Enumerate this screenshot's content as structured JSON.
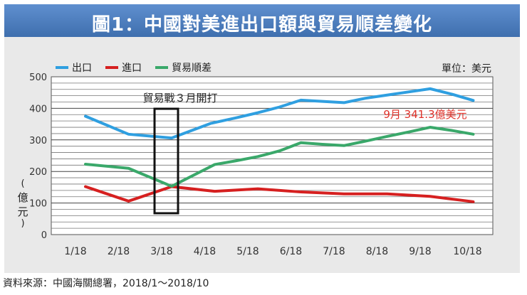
{
  "title": "圖1：中國對美進出口額與貿易順差變化",
  "unit_label": "單位：美元",
  "source": "資料來源：中國海關總署，2018/1～2018/10",
  "colors": {
    "export": "#2f9fe0",
    "import": "#d62020",
    "surplus": "#3aa86a",
    "annotation_red": "#e0322a"
  },
  "chart_data": {
    "type": "line",
    "title": "圖1：中國對美進出口額與貿易順差變化",
    "xlabel": "",
    "ylabel": "億元",
    "categories": [
      "1/18",
      "2/18",
      "3/18",
      "4/18",
      "5/18",
      "6/18",
      "7/18",
      "8/18",
      "9/18",
      "10/18"
    ],
    "ylim": [
      0,
      500
    ],
    "yticks": [
      0,
      100,
      200,
      300,
      400,
      500
    ],
    "grid": true,
    "legend": "top-left",
    "series": [
      {
        "name": "出口",
        "color": "#2f9fe0",
        "x": [
          0,
          1,
          2,
          2.9,
          3.5,
          4,
          4.5,
          5,
          6,
          6.5,
          7,
          7.5,
          8,
          8.5,
          9
        ],
        "values": [
          375,
          318,
          306,
          352,
          370,
          386,
          404,
          426,
          418,
          432,
          442,
          452,
          462,
          445,
          425
        ]
      },
      {
        "name": "進口",
        "color": "#d62020",
        "x": [
          0,
          1,
          2,
          3,
          4,
          5,
          6,
          7,
          8,
          9
        ],
        "values": [
          152,
          106,
          152,
          137,
          145,
          135,
          129,
          129,
          121,
          104
        ]
      },
      {
        "name": "貿易順差",
        "color": "#3aa86a",
        "x": [
          0,
          1,
          2,
          3,
          3.5,
          4,
          4.5,
          5,
          5.5,
          6,
          6.5,
          7,
          7.5,
          8,
          8.5,
          9
        ],
        "values": [
          223,
          210,
          153,
          222,
          234,
          247,
          265,
          291,
          286,
          282,
          296,
          311,
          325,
          340,
          330,
          318
        ]
      }
    ],
    "annotations": [
      {
        "text": "貿易戰３月開打",
        "x": 2
      },
      {
        "text": "9月 341.3億美元",
        "x": 8
      }
    ]
  }
}
